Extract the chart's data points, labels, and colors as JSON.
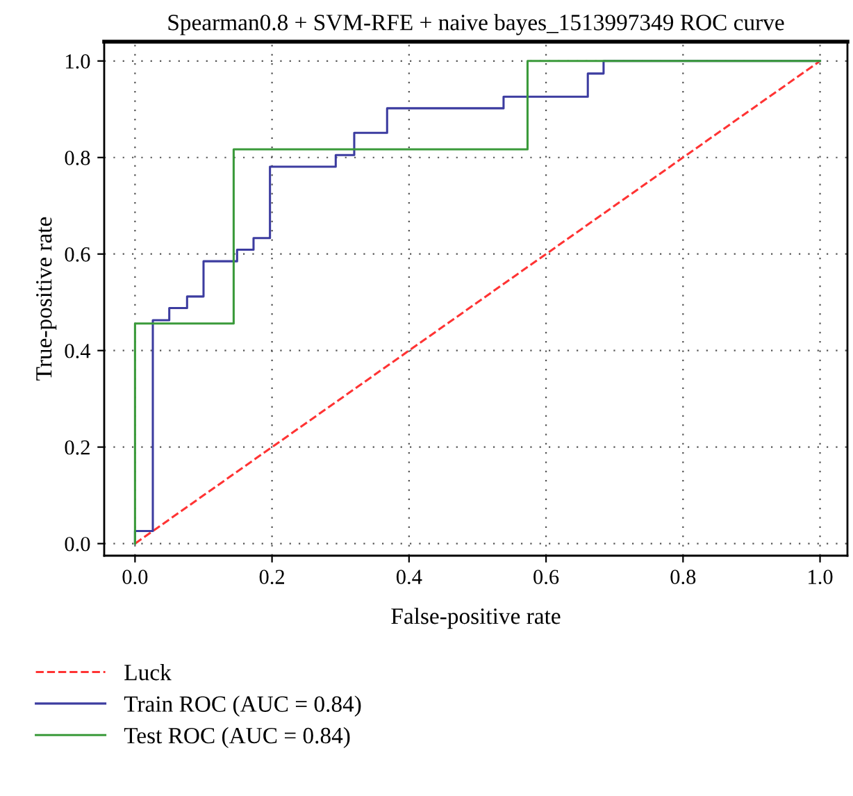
{
  "chart_data": {
    "type": "line",
    "title": "Spearman0.8 + SVM-RFE + naive bayes_1513997349 ROC curve",
    "xlabel": "False-positive rate",
    "ylabel": "True-positive rate",
    "xlim": [
      -0.045,
      1.04
    ],
    "ylim": [
      -0.025,
      1.04
    ],
    "xticks": [
      {
        "value": 0,
        "label": "0.0"
      },
      0.2,
      0.4,
      0.6,
      0.8,
      {
        "value": 1,
        "label": "1.0"
      }
    ],
    "yticks": [
      {
        "value": 0,
        "label": "0.0"
      },
      0.2,
      0.4,
      0.6,
      0.8,
      {
        "value": 1,
        "label": "1.0"
      }
    ],
    "grid": true,
    "legend": "bottom left",
    "series": [
      {
        "name": "Luck",
        "line_style": "dashed",
        "color": "#ff3333",
        "x": [
          0,
          1
        ],
        "values": [
          0,
          1
        ]
      },
      {
        "name": "Train ROC (AUC = 0.84)",
        "type": "step",
        "line_style": "solid",
        "color": "#3c3ca0",
        "x": [
          0,
          0,
          0.026,
          0.05,
          0.076,
          0.1,
          0.149,
          0.173,
          0.197,
          0.293,
          0.32,
          0.368,
          0.538,
          0.661,
          0.684,
          1.0
        ],
        "values": [
          0,
          0.026,
          0.463,
          0.488,
          0.512,
          0.585,
          0.609,
          0.633,
          0.781,
          0.805,
          0.851,
          0.902,
          0.926,
          0.974,
          1.0,
          1.0
        ]
      },
      {
        "name": "Test ROC (AUC = 0.84)",
        "type": "step",
        "line_style": "solid",
        "color": "#3a9a3a",
        "x": [
          0,
          0,
          0.144,
          0.573,
          1.0
        ],
        "values": [
          0,
          0.456,
          0.817,
          1.0,
          1.0
        ]
      }
    ]
  }
}
